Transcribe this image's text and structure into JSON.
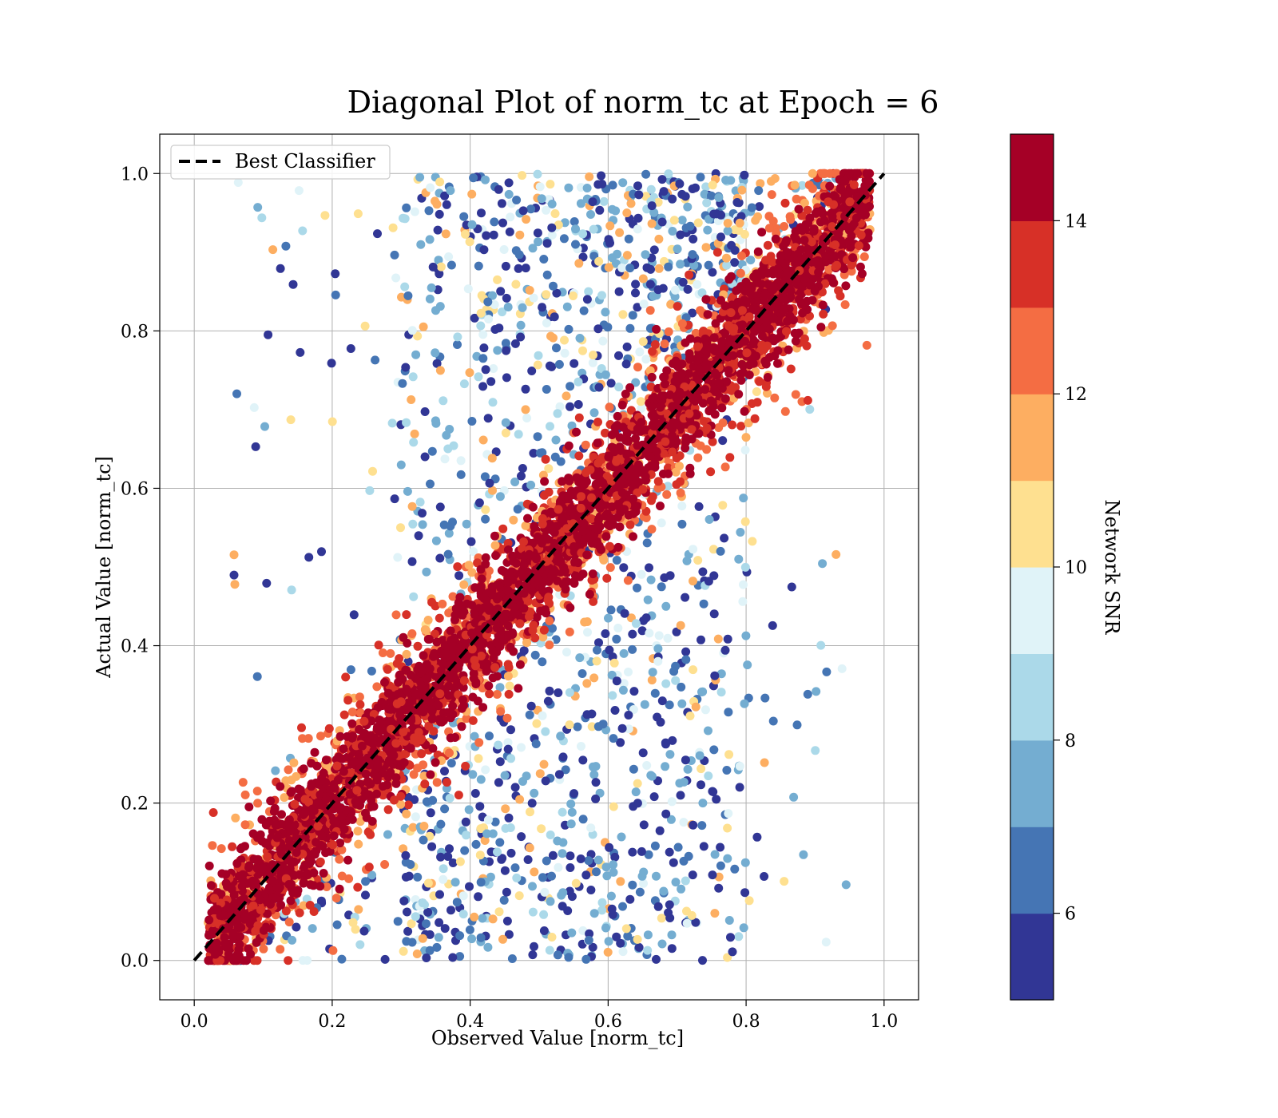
{
  "chart_data": {
    "type": "scatter",
    "title": "Diagonal Plot of norm_tc at Epoch = 6",
    "xlabel": "Observed Value [norm_tc]",
    "ylabel": "Actual Value [norm_tc]",
    "xlim": [
      -0.05,
      1.05
    ],
    "ylim": [
      -0.05,
      1.05
    ],
    "xticks": [
      "0.0",
      "0.2",
      "0.4",
      "0.6",
      "0.8",
      "1.0"
    ],
    "yticks": [
      "0.0",
      "0.2",
      "0.4",
      "0.6",
      "0.8",
      "1.0"
    ],
    "grid": true,
    "legend": {
      "label": "Best Classifier",
      "placement": "upper-left"
    },
    "reference_line": {
      "name": "Best Classifier",
      "x": [
        0.0,
        1.0
      ],
      "y": [
        0.0,
        1.0
      ],
      "style": "dashed",
      "color": "#000000"
    },
    "colorbar": {
      "label": "Network SNR",
      "ticks": [
        "6",
        "8",
        "10",
        "12",
        "14"
      ],
      "range": [
        5,
        15
      ],
      "colors": [
        "#313695",
        "#4575b4",
        "#74add1",
        "#abd9e9",
        "#e0f3f8",
        "#fee090",
        "#fdae61",
        "#f46d43",
        "#d73027",
        "#a50026"
      ]
    },
    "points_description": "Dense band of high-SNR points along the diagonal y = x (x from about 0.02 to 0.98); low-SNR points scattered above and below the diagonal, mostly for x between 0.3 and 0.8."
  }
}
